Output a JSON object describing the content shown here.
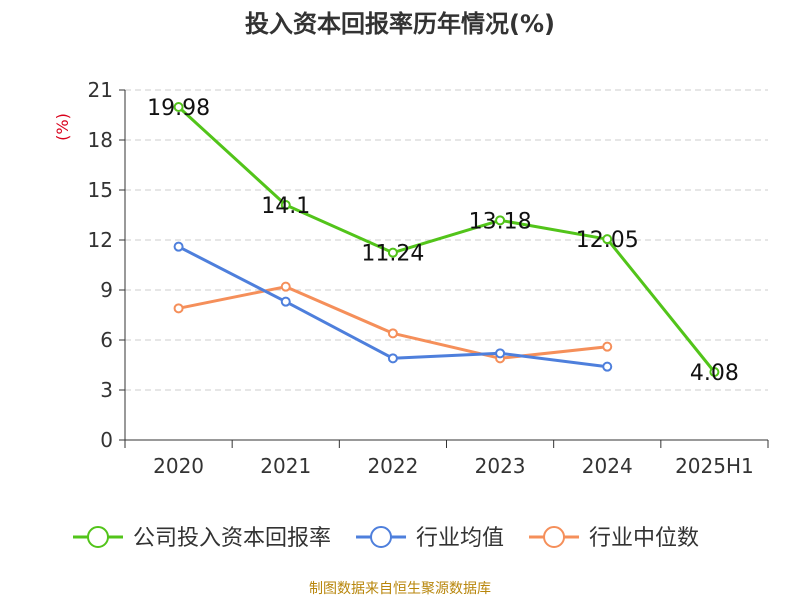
{
  "chart_data": {
    "type": "line",
    "title": "投入资本回报率历年情况(%)",
    "ylabel": "(%)",
    "xlabel": "",
    "categories": [
      "2020",
      "2021",
      "2022",
      "2023",
      "2024",
      "2025H1"
    ],
    "ylim": [
      0,
      21
    ],
    "yticks": [
      0,
      3,
      6,
      9,
      12,
      15,
      18,
      21
    ],
    "grid": true,
    "legend_position": "bottom",
    "series": [
      {
        "name": "公司投入资本回报率",
        "color": "#52c41a",
        "values": [
          19.98,
          14.1,
          11.24,
          13.18,
          12.05,
          4.08
        ],
        "labels": [
          "19.98",
          "14.1",
          "11.24",
          "13.18",
          "12.05",
          "4.08"
        ]
      },
      {
        "name": "行业均值",
        "color": "#4e7fdc",
        "values": [
          11.6,
          8.3,
          4.9,
          5.2,
          4.4,
          null
        ]
      },
      {
        "name": "行业中位数",
        "color": "#f58f5a",
        "values": [
          7.9,
          9.2,
          6.4,
          4.9,
          5.6,
          null
        ]
      }
    ],
    "source": "制图数据来自恒生聚源数据库"
  }
}
